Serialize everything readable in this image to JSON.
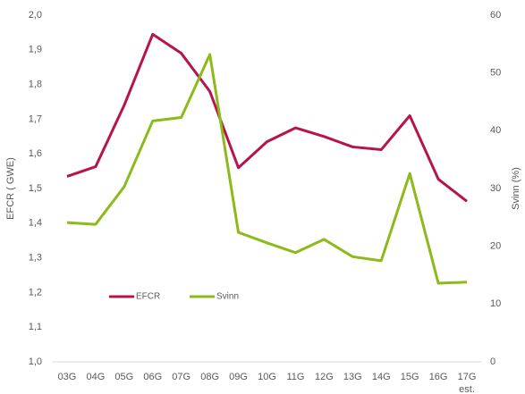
{
  "chart_data": {
    "type": "line",
    "y_label": "EFCR ( GWE)",
    "y2_label": "Svinn (%)",
    "categories": [
      "03G",
      "04G",
      "05G",
      "06G",
      "07G",
      "08G",
      "09G",
      "10G",
      "11G",
      "12G",
      "13G",
      "14G",
      "15G",
      "16G",
      "17G"
    ],
    "x_note": "est.",
    "series": [
      {
        "name": "EFCR",
        "color": "#b5154b",
        "values": [
          1.535,
          1.563,
          1.74,
          1.945,
          1.89,
          1.78,
          1.56,
          1.635,
          1.675,
          1.65,
          1.62,
          1.612,
          1.71,
          1.527,
          1.463
        ]
      },
      {
        "name": "Svinn",
        "color": "#8cba1a",
        "axis": "y2",
        "values": [
          24.1,
          23.8,
          30.3,
          41.7,
          42.3,
          53.2,
          22.4,
          20.6,
          18.9,
          21.2,
          18.2,
          17.5,
          32.6,
          13.6,
          13.8
        ]
      }
    ],
    "ylim": [
      1.0,
      2.0
    ],
    "yticks": [
      {
        "value": 1.0,
        "label": "1,0"
      },
      {
        "value": 1.1,
        "label": "1,1"
      },
      {
        "value": 1.2,
        "label": "1,2"
      },
      {
        "value": 1.3,
        "label": "1,3"
      },
      {
        "value": 1.4,
        "label": "1,4"
      },
      {
        "value": 1.5,
        "label": "1,5"
      },
      {
        "value": 1.6,
        "label": "1,6"
      },
      {
        "value": 1.7,
        "label": "1,7"
      },
      {
        "value": 1.8,
        "label": "1,8"
      },
      {
        "value": 1.9,
        "label": "1,9"
      },
      {
        "value": 2.0,
        "label": "2,0"
      }
    ],
    "y2lim": [
      0,
      60
    ],
    "y2ticks": [
      0,
      10,
      20,
      30,
      40,
      50,
      60
    ],
    "legend": "lower left"
  }
}
